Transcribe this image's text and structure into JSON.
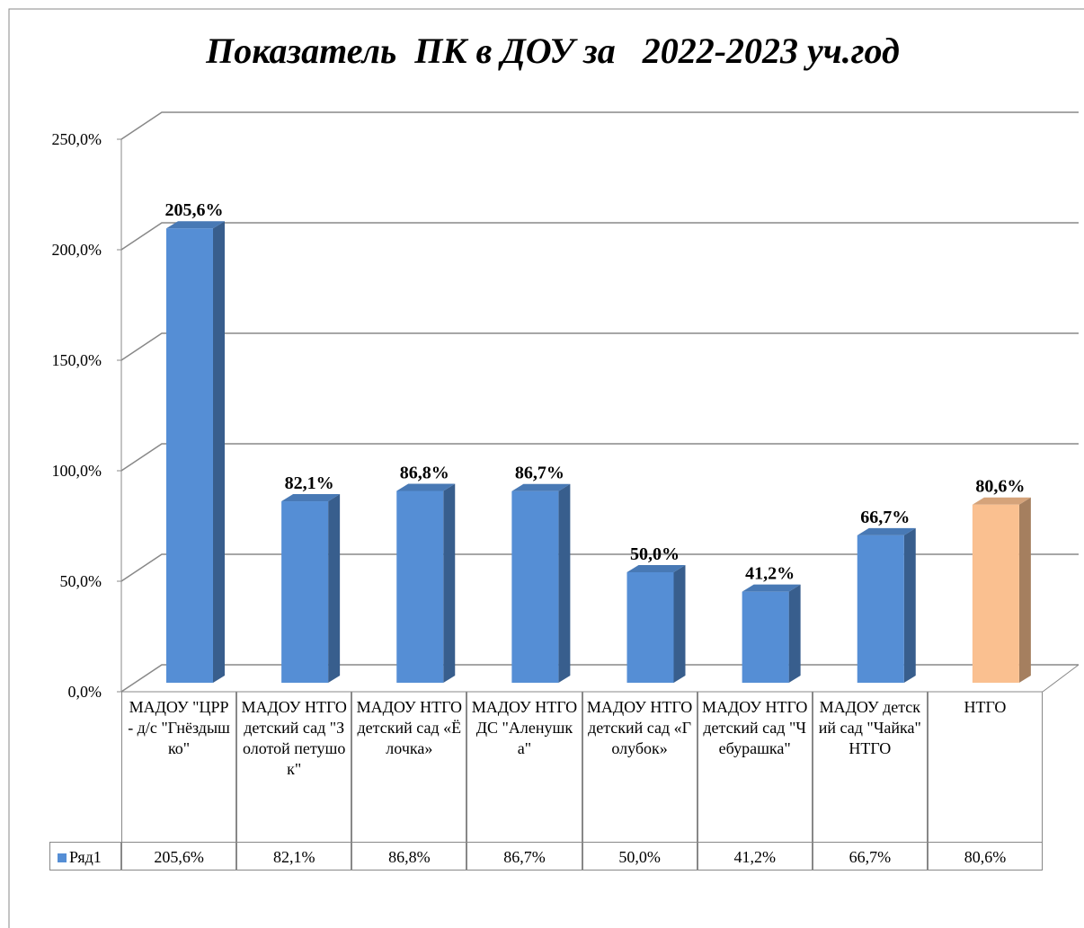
{
  "chart_data": {
    "type": "bar3d",
    "title": "Показатель  ПК в ДОУ за   2022-2023 уч.год",
    "categories": [
      "МАДОУ \"ЦРР - д/с \"Гнёздышко\"",
      "МАДОУ НТГО детский сад \"Золотой петушок\"",
      "МАДОУ НТГО детский сад «Ёлочка»",
      "МАДОУ НТГО ДС \"Аленушка\"",
      "МАДОУ НТГО детский сад «Голубок»",
      "МАДОУ НТГО детский сад \"Чебурашка\"",
      "МАДОУ детский сад \"Чайка\" НТГО",
      "НТГО"
    ],
    "series": [
      {
        "name": "Ряд1",
        "color": "#558ed5",
        "point_colors": [
          "#558ed5",
          "#558ed5",
          "#558ed5",
          "#558ed5",
          "#558ed5",
          "#558ed5",
          "#558ed5",
          "#fac090"
        ],
        "values": [
          205.6,
          82.1,
          86.8,
          86.7,
          50.0,
          41.2,
          66.7,
          80.6
        ],
        "value_labels": [
          "205,6%",
          "82,1%",
          "86,8%",
          "86,7%",
          "50,0%",
          "41,2%",
          "66,7%",
          "80,6%"
        ]
      }
    ],
    "ylim": [
      0,
      250
    ],
    "yticks": [
      {
        "value": 0,
        "label": "0,0%"
      },
      {
        "value": 50,
        "label": "50,0%"
      },
      {
        "value": 100,
        "label": "100,0%"
      },
      {
        "value": 150,
        "label": "150,0%"
      },
      {
        "value": 200,
        "label": "200,0%"
      },
      {
        "value": 250,
        "label": "250,0%"
      }
    ],
    "grid": true
  }
}
